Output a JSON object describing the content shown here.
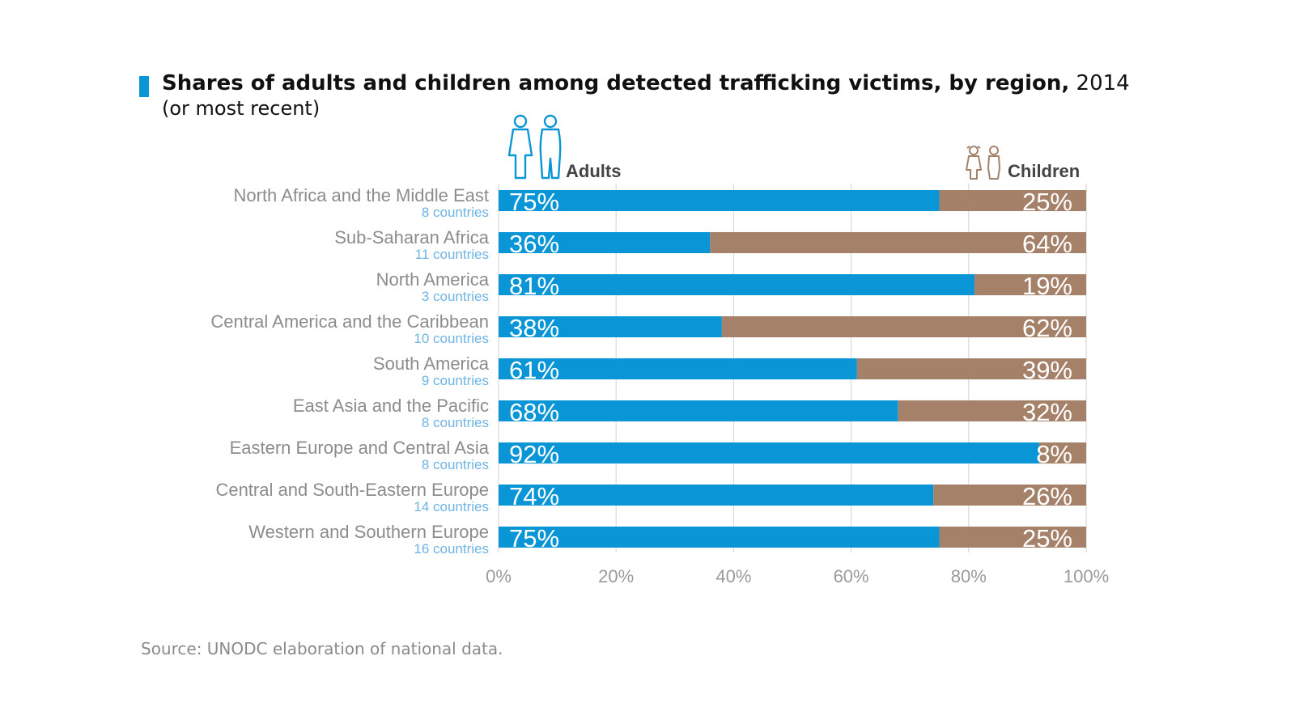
{
  "title": {
    "main": "Shares of adults and children among detected trafficking victims, by region,",
    "year": "2014",
    "subtitle": "(or most recent)"
  },
  "legend": {
    "adults": "Adults",
    "children": "Children"
  },
  "source": "Source: UNODC elaboration of national data.",
  "colors": {
    "adults": "#0a96d6",
    "children": "#a6816a",
    "title_marker": "#0a96d6",
    "region_label": "#8c8c8c",
    "country_count": "#6fb4e4",
    "axis_tick": "#9a9a9a",
    "grid": "#d9d9d9"
  },
  "icons": {
    "adults": "adults-figures-icon",
    "children": "children-figures-icon"
  },
  "chart_data": {
    "type": "bar",
    "orientation": "horizontal",
    "stacked": true,
    "xlim": [
      0,
      100
    ],
    "x_ticks": [
      "0%",
      "20%",
      "40%",
      "60%",
      "80%",
      "100%"
    ],
    "grid": true,
    "categories": [
      "North Africa and the Middle East",
      "Sub-Saharan Africa",
      "North America",
      "Central America and the Caribbean",
      "South America",
      "East Asia and the Pacific",
      "Eastern Europe and Central Asia",
      "Central and South-Eastern Europe",
      "Western and Southern Europe"
    ],
    "category_notes": [
      "8 countries",
      "11 countries",
      "3 countries",
      "10 countries",
      "9 countries",
      "8 countries",
      "8 countries",
      "14 countries",
      "16 countries"
    ],
    "series": [
      {
        "name": "Adults",
        "values": [
          75,
          36,
          81,
          38,
          61,
          68,
          92,
          74,
          75
        ],
        "labels": [
          "75%",
          "36%",
          "81%",
          "38%",
          "61%",
          "68%",
          "92%",
          "74%",
          "75%"
        ]
      },
      {
        "name": "Children",
        "values": [
          25,
          64,
          19,
          62,
          39,
          32,
          8,
          26,
          25
        ],
        "labels": [
          "25%",
          "64%",
          "19%",
          "62%",
          "39%",
          "32%",
          "8%",
          "26%",
          "25%"
        ]
      }
    ]
  }
}
